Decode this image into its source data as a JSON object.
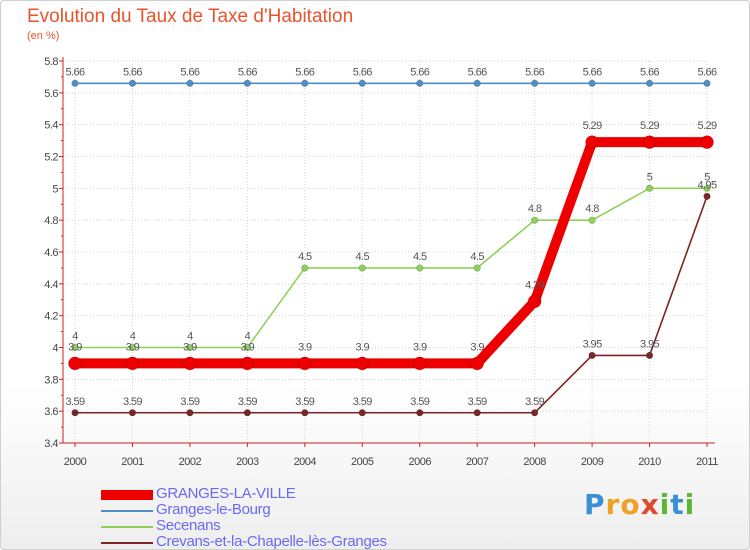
{
  "title": "Evolution du Taux de Taxe d'Habitation",
  "subtitle": "(en %)",
  "logo": {
    "letters": [
      "P",
      "r",
      "o",
      "x",
      "i",
      "t",
      "i"
    ],
    "colors": [
      "#3b8fd6",
      "#f0a024",
      "#f0a024",
      "#e04a2a",
      "#5cb833",
      "#3b8fd6",
      "#5cb833"
    ]
  },
  "chart_data": {
    "type": "line",
    "x": [
      "2000",
      "2001",
      "2002",
      "2003",
      "2004",
      "2005",
      "2006",
      "2007",
      "2008",
      "2009",
      "2010",
      "2011"
    ],
    "ylim": [
      3.4,
      5.8
    ],
    "yticks": [
      "3.4",
      "3.6",
      "3.8",
      "4",
      "4.2",
      "4.4",
      "4.6",
      "4.8",
      "5",
      "5.2",
      "5.4",
      "5.6",
      "5.8"
    ],
    "grid": true,
    "legend_position": "bottom-left",
    "series": [
      {
        "name": "Granges-le-Bourg",
        "color": "#4f8fc8",
        "values": [
          5.66,
          5.66,
          5.66,
          5.66,
          5.66,
          5.66,
          5.66,
          5.66,
          5.66,
          5.66,
          5.66,
          5.66
        ],
        "labels": [
          "5.66",
          "5.66",
          "5.66",
          "5.66",
          "5.66",
          "5.66",
          "5.66",
          "5.66",
          "5.66",
          "5.66",
          "5.66",
          "5.66"
        ]
      },
      {
        "name": "Secenans",
        "color": "#8fd05a",
        "values": [
          4,
          4,
          4,
          4,
          4.5,
          4.5,
          4.5,
          4.5,
          4.8,
          4.8,
          5,
          5
        ],
        "labels": [
          "4",
          "4",
          "4",
          "4",
          "4.5",
          "4.5",
          "4.5",
          "4.5",
          "4.8",
          "4.8",
          "5",
          "5"
        ]
      },
      {
        "name": "Crevans-et-la-Chapelle-lès-Granges",
        "color": "#7a2626",
        "values": [
          3.59,
          3.59,
          3.59,
          3.59,
          3.59,
          3.59,
          3.59,
          3.59,
          3.59,
          3.95,
          3.95,
          4.95
        ],
        "labels": [
          "3.59",
          "3.59",
          "3.59",
          "3.59",
          "3.59",
          "3.59",
          "3.59",
          "3.59",
          "3.59",
          "3.95",
          "3.95",
          "4.95"
        ]
      },
      {
        "name": "GRANGES-LA-VILLE",
        "color": "#ee0000",
        "values": [
          3.9,
          3.9,
          3.9,
          3.9,
          3.9,
          3.9,
          3.9,
          3.9,
          4.29,
          5.29,
          5.29,
          5.29
        ],
        "labels": [
          "3.9",
          "3.9",
          "3.9",
          "3.9",
          "3.9",
          "3.9",
          "3.9",
          "3.9",
          "4.29",
          "5.29",
          "5.29",
          "5.29"
        ]
      }
    ],
    "legend": [
      "GRANGES-LA-VILLE",
      "Granges-le-Bourg",
      "Secenans",
      "Crevans-et-la-Chapelle-lès-Granges"
    ]
  }
}
